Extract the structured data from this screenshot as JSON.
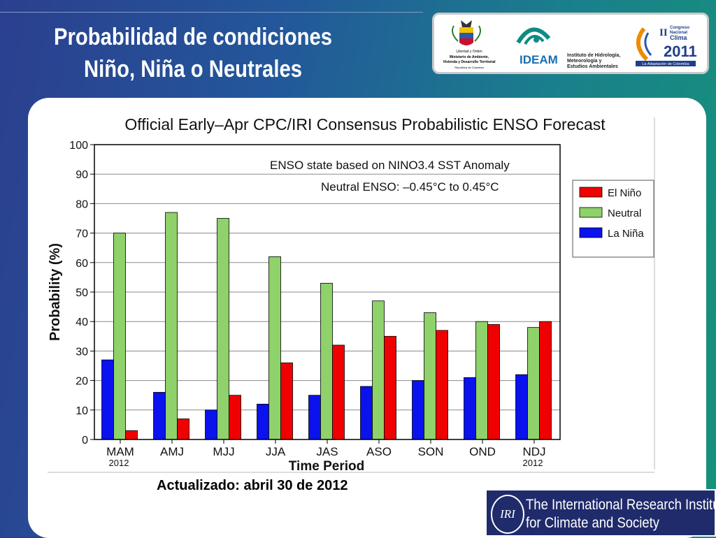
{
  "slide": {
    "title_line1": "Probabilidad de condiciones",
    "title_line2": "Niño, Niña o Neutrales",
    "updated": "Actualizado: abril 30 de 2012"
  },
  "logos": {
    "ministry_line1": "Libertad y Orden",
    "ministry_line2": "Ministerio de Ambiente,",
    "ministry_line3": "Vivienda y Desarrollo Territorial",
    "ministry_line4": "República de Colombia",
    "ideam_name": "IDEAM",
    "ideam_line1": "Instituto de Hidrología,",
    "ideam_line2": "Meteorología y",
    "ideam_line3": "Estudios Ambientales",
    "congreso_roman": "II",
    "congreso_line1": "Congreso",
    "congreso_line2": "Nacional",
    "congreso_line3": "Clima",
    "congreso_year": "2011",
    "congreso_tagline": "La Adaptación de Colombia",
    "iri_abbr": "IRI",
    "iri_line1": "The International Research Institute",
    "iri_line2": "for Climate and Society"
  },
  "chart_data": {
    "type": "bar",
    "title": "Official Early–Apr CPC/IRI Consensus Probabilistic ENSO Forecast",
    "annotation_line1": "ENSO state based on NINO3.4 SST Anomaly",
    "annotation_line2": "Neutral ENSO: –0.45°C to 0.45°C",
    "xlabel": "Time Period",
    "ylabel": "Probability (%)",
    "ylim": [
      0,
      100
    ],
    "yticks": [
      "0",
      "10",
      "20",
      "30",
      "40",
      "50",
      "60",
      "70",
      "80",
      "90",
      "100"
    ],
    "grid": true,
    "legend_position": "right",
    "categories": [
      "MAM",
      "AMJ",
      "MJJ",
      "JJA",
      "JAS",
      "ASO",
      "SON",
      "OND",
      "NDJ"
    ],
    "category_sublabels": [
      "2012",
      "",
      "",
      "",
      "",
      "",
      "",
      "",
      "2012"
    ],
    "series": [
      {
        "name": "La Niña",
        "color": "#0a12ee",
        "values": [
          27,
          16,
          10,
          12,
          15,
          18,
          20,
          21,
          22
        ]
      },
      {
        "name": "Neutral",
        "color": "#8fd16a",
        "values": [
          70,
          77,
          75,
          62,
          53,
          47,
          43,
          40,
          38
        ]
      },
      {
        "name": "El Niño",
        "color": "#f00000",
        "values": [
          3,
          7,
          15,
          26,
          32,
          35,
          37,
          39,
          40
        ]
      }
    ],
    "legend_order": [
      "El Niño",
      "Neutral",
      "La Niña"
    ]
  }
}
